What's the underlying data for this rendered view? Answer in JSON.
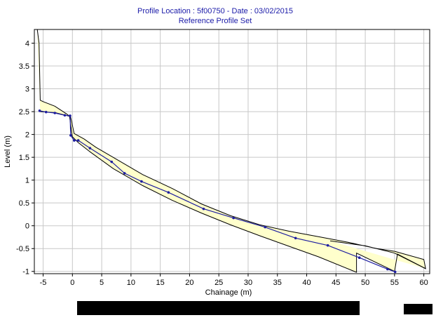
{
  "chart_data": {
    "type": "line",
    "title": "Profile Location : 5f00750 - Date : 03/02/2015",
    "subtitle": "Reference Profile Set",
    "xlabel": "Chainage (m)",
    "ylabel": "Level (m)",
    "xlim": [
      -6.5,
      61
    ],
    "ylim": [
      -1.05,
      4.3
    ],
    "xticks": [
      -5,
      0,
      5,
      10,
      15,
      20,
      25,
      30,
      35,
      40,
      45,
      50,
      55,
      60
    ],
    "xtick_labels": [
      "-5",
      "0",
      "5",
      "10",
      "15",
      "20",
      "25",
      "30",
      "35",
      "40",
      "45",
      "50",
      "55",
      "60"
    ],
    "yticks": [
      -1,
      -0.5,
      0,
      0.5,
      1,
      1.5,
      2,
      2.5,
      3,
      3.5,
      4
    ],
    "ytick_labels": [
      "-1",
      "-0.5",
      "0",
      "0.5",
      "1",
      "1.5",
      "2",
      "2.5",
      "3",
      "3.5",
      "4"
    ],
    "grid": true,
    "envelope_fill": "#ffffcc",
    "series": [
      {
        "role": "envelope-upper",
        "color": "#000000",
        "points": [
          [
            -6,
            4.3
          ],
          [
            -5.7,
            4.0
          ],
          [
            -5.5,
            2.75
          ],
          [
            -5,
            2.72
          ],
          [
            -3,
            2.62
          ],
          [
            -1,
            2.45
          ],
          [
            -0.3,
            2.38
          ],
          [
            0.3,
            2.02
          ],
          [
            2,
            1.9
          ],
          [
            4,
            1.72
          ],
          [
            8,
            1.42
          ],
          [
            12,
            1.12
          ],
          [
            17,
            0.82
          ],
          [
            22,
            0.48
          ],
          [
            27,
            0.22
          ],
          [
            32,
            0.02
          ],
          [
            37,
            -0.12
          ],
          [
            42,
            -0.24
          ],
          [
            47,
            -0.36
          ],
          [
            52,
            -0.5
          ],
          [
            55,
            -0.56
          ],
          [
            60,
            -0.74
          ],
          [
            60.3,
            -0.94
          ],
          [
            55,
            -0.6
          ],
          [
            50,
            -0.44
          ],
          [
            44,
            -0.33
          ]
        ]
      },
      {
        "role": "envelope-lower",
        "color": "#000000",
        "points": [
          [
            -5.5,
            2.5
          ],
          [
            -3,
            2.48
          ],
          [
            -0.5,
            2.4
          ],
          [
            0,
            1.95
          ],
          [
            1,
            1.82
          ],
          [
            3,
            1.62
          ],
          [
            7,
            1.25
          ],
          [
            12,
            0.88
          ],
          [
            17,
            0.56
          ],
          [
            22,
            0.28
          ],
          [
            27,
            0.02
          ],
          [
            32,
            -0.22
          ],
          [
            37,
            -0.45
          ],
          [
            42,
            -0.68
          ],
          [
            48.5,
            -1.02
          ],
          [
            48.5,
            -0.6
          ],
          [
            55,
            -1.0
          ],
          [
            55.5,
            -0.62
          ],
          [
            60.3,
            -0.94
          ]
        ]
      },
      {
        "role": "reference-profile",
        "color": "#1e1ea0",
        "points": [
          [
            -5.6,
            2.52
          ],
          [
            -4.5,
            2.49
          ],
          [
            -3,
            2.47
          ],
          [
            -1.3,
            2.42
          ],
          [
            -0.4,
            2.41
          ],
          [
            -0.3,
            1.98
          ],
          [
            0.3,
            1.87
          ],
          [
            1,
            1.87
          ],
          [
            3,
            1.7
          ],
          [
            6.7,
            1.4
          ],
          [
            8.9,
            1.15
          ],
          [
            11.8,
            0.97
          ],
          [
            16.4,
            0.73
          ],
          [
            22.4,
            0.37
          ],
          [
            27.5,
            0.17
          ],
          [
            32.9,
            -0.03
          ],
          [
            38.1,
            -0.27
          ],
          [
            43.6,
            -0.43
          ],
          [
            49,
            -0.7
          ],
          [
            53.8,
            -0.95
          ],
          [
            55.1,
            -1.01
          ]
        ]
      }
    ]
  }
}
